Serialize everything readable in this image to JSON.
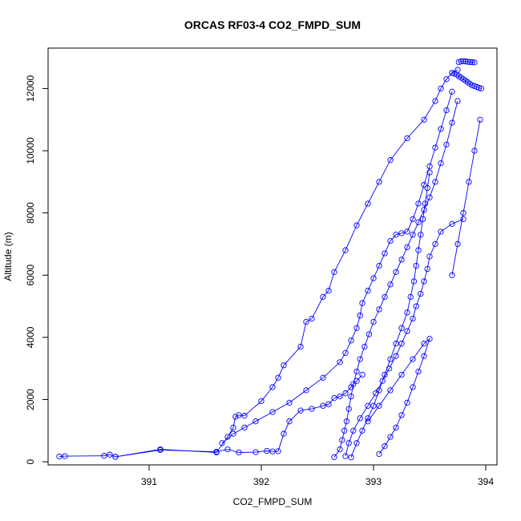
{
  "chart_data": {
    "type": "line",
    "title": "ORCAS RF03-4 CO2_FMPD_SUM",
    "xlabel": "CO2_FMPD_SUM",
    "ylabel": "Altitude (m)",
    "xlim": [
      390.1,
      394.1
    ],
    "ylim": [
      -100,
      13300
    ],
    "xticks": [
      391,
      392,
      393,
      394
    ],
    "yticks": [
      0,
      2000,
      4000,
      6000,
      8000,
      10000,
      12000
    ],
    "grid": false,
    "legend": "none",
    "marker": "open-circle",
    "line_color": "#0000ff",
    "series": [
      {
        "x": [
          390.2,
          390.25,
          390.6,
          390.65,
          390.7,
          391.1,
          391.6,
          391.7,
          391.75,
          391.77,
          391.8,
          391.85,
          392.0,
          392.1,
          392.15,
          392.2,
          392.35,
          392.4,
          392.45,
          392.55,
          392.6,
          392.65,
          392.75,
          392.85,
          392.95,
          393.05,
          393.15,
          393.3,
          393.45,
          393.55,
          393.6,
          393.65,
          393.7,
          393.75
        ],
        "y": [
          170,
          180,
          190,
          230,
          160,
          400,
          300,
          800,
          1100,
          1450,
          1500,
          1480,
          1950,
          2400,
          2700,
          3100,
          3700,
          4500,
          4600,
          5300,
          5500,
          6100,
          6800,
          7600,
          8300,
          9000,
          9700,
          10400,
          11000,
          11600,
          12000,
          12300,
          12500,
          12600
        ]
      },
      {
        "x": [
          390.7,
          391.1,
          391.6,
          391.7,
          391.8,
          391.95,
          392.05,
          392.1,
          392.15,
          392.2,
          392.25,
          392.35,
          392.45,
          392.55,
          392.6,
          392.65,
          392.7,
          392.75,
          392.8,
          392.85,
          392.9
        ],
        "y": [
          160,
          380,
          320,
          400,
          300,
          310,
          350,
          330,
          340,
          900,
          1300,
          1650,
          1700,
          1800,
          1850,
          2050,
          2100,
          2200,
          2400,
          2600,
          2800
        ]
      },
      {
        "x": [
          391.65,
          391.75,
          391.85,
          391.95,
          392.1,
          392.25,
          392.4,
          392.55,
          392.7,
          392.75,
          392.8,
          392.85,
          392.88,
          392.9,
          392.95,
          393.0,
          393.05,
          393.1,
          393.15,
          393.2,
          393.25,
          393.3,
          393.35,
          393.4,
          393.45,
          393.5,
          393.55,
          393.6,
          393.65,
          393.7
        ],
        "y": [
          600,
          900,
          1100,
          1300,
          1600,
          1900,
          2300,
          2700,
          3200,
          3500,
          3900,
          4300,
          4700,
          5100,
          5500,
          5900,
          6300,
          6700,
          7100,
          7300,
          7350,
          7400,
          7800,
          8300,
          8900,
          9500,
          10100,
          10700,
          11300,
          11900
        ]
      },
      {
        "x": [
          392.65,
          392.7,
          392.72,
          392.74,
          392.76,
          392.78,
          392.8,
          392.82,
          392.85,
          392.88,
          392.92,
          392.96,
          393.0,
          393.05,
          393.1,
          393.15,
          393.2,
          393.25,
          393.3,
          393.35,
          393.4,
          393.45,
          393.5,
          393.55,
          393.6,
          393.65,
          393.7,
          393.75
        ],
        "y": [
          150,
          400,
          700,
          1000,
          1300,
          1700,
          2100,
          2500,
          2900,
          3300,
          3700,
          4100,
          4500,
          4900,
          5300,
          5700,
          6100,
          6500,
          6900,
          7300,
          7700,
          8100,
          8500,
          9000,
          9600,
          10200,
          10900,
          11600
        ]
      },
      {
        "x": [
          392.75,
          392.78,
          392.82,
          392.88,
          392.95,
          393.02,
          393.08,
          393.14,
          393.2,
          393.25,
          393.3,
          393.35,
          393.38,
          393.42,
          393.45,
          393.48,
          393.5,
          393.55,
          393.6,
          393.7,
          393.8
        ],
        "y": [
          180,
          600,
          1000,
          1400,
          1800,
          2200,
          2600,
          3000,
          3400,
          3800,
          4200,
          4600,
          5000,
          5400,
          5800,
          6200,
          6600,
          7000,
          7400,
          7650,
          7800
        ]
      },
      {
        "x": [
          392.8,
          392.85,
          392.9,
          392.95,
          393.0,
          393.05,
          393.1,
          393.15,
          393.2,
          393.25,
          393.3,
          393.33,
          393.36,
          393.38,
          393.4,
          393.42,
          393.44,
          393.46,
          393.48,
          393.5
        ],
        "y": [
          140,
          600,
          1000,
          1400,
          1800,
          2300,
          2800,
          3300,
          3800,
          4300,
          4800,
          5300,
          5800,
          6300,
          6800,
          7300,
          7800,
          8300,
          8800,
          9300
        ]
      },
      {
        "x": [
          392.95,
          393.05,
          393.15,
          393.25,
          393.35,
          393.45,
          393.5,
          393.45,
          393.4,
          393.35,
          393.3,
          393.25,
          393.2,
          393.15,
          393.1,
          393.05
        ],
        "y": [
          1300,
          1800,
          2300,
          2800,
          3300,
          3800,
          3950,
          3400,
          2900,
          2400,
          1900,
          1500,
          1100,
          800,
          500,
          250
        ]
      },
      {
        "x": [
          393.7,
          393.72,
          393.74,
          393.76,
          393.78,
          393.8,
          393.82,
          393.84,
          393.86,
          393.88,
          393.9,
          393.92,
          393.94,
          393.96
        ],
        "y": [
          12500,
          12480,
          12450,
          12400,
          12350,
          12300,
          12250,
          12200,
          12150,
          12100,
          12080,
          12050,
          12020,
          12000
        ]
      },
      {
        "x": [
          393.76,
          393.78,
          393.8,
          393.82,
          393.84,
          393.86,
          393.88,
          393.9
        ],
        "y": [
          12850,
          12870,
          12880,
          12870,
          12860,
          12850,
          12850,
          12840
        ]
      },
      {
        "x": [
          393.95,
          393.9,
          393.85,
          393.8,
          393.75,
          393.7
        ],
        "y": [
          11000,
          10000,
          9000,
          8000,
          7000,
          6000
        ]
      }
    ]
  }
}
